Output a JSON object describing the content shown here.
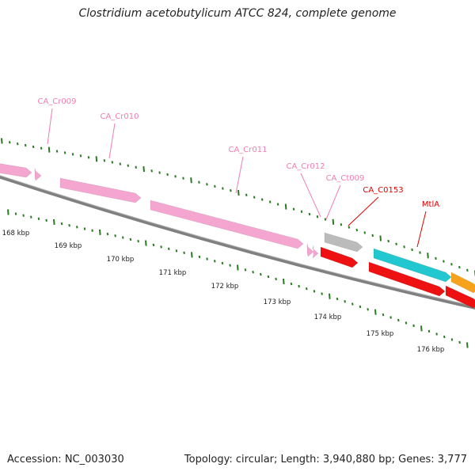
{
  "title": "Clostridium acetobutylicum ATCC 824, complete genome",
  "footer": {
    "accession": "Accession: NC_003030",
    "summary": "Topology: circular; Length: 3,940,880 bp; Genes: 3,777"
  },
  "colors": {
    "pink": "#f4a6d0",
    "red": "#ee1111",
    "gray": "#bbbbbb",
    "cyan": "#22c7cf",
    "orange": "#f7a21e",
    "tick": "#2a7a22",
    "backbone": "#808080",
    "label_pink": "#f07db5",
    "label_red": "#dd0000"
  },
  "scale": {
    "tick_labels": [
      "168 kbp",
      "169 kbp",
      "170 kbp",
      "171 kbp",
      "172 kbp",
      "173 kbp",
      "174 kbp",
      "175 kbp",
      "176 kbp"
    ]
  },
  "features": [
    {
      "name": "",
      "color": "pink",
      "strand": "+"
    },
    {
      "name": "",
      "color": "pink",
      "strand": "+"
    },
    {
      "name": "",
      "color": "pink",
      "strand": "+"
    },
    {
      "name": "",
      "color": "pink",
      "strand": "+"
    },
    {
      "name": "",
      "color": "pink",
      "strand": "+"
    },
    {
      "name": "",
      "color": "pink",
      "strand": "+"
    },
    {
      "name": "",
      "color": "pink",
      "strand": "+"
    },
    {
      "name": "",
      "color": "gray",
      "strand": "+"
    },
    {
      "name": "",
      "color": "red",
      "strand": "+"
    },
    {
      "name": "",
      "color": "cyan",
      "strand": "+"
    },
    {
      "name": "",
      "color": "orange",
      "strand": "+"
    },
    {
      "name": "",
      "color": "red",
      "strand": "-"
    },
    {
      "name": "",
      "color": "red",
      "strand": "-"
    }
  ],
  "gene_labels": [
    {
      "text": "CA_Cr009",
      "color": "label_pink"
    },
    {
      "text": "CA_Cr010",
      "color": "label_pink"
    },
    {
      "text": "CA_Cr011",
      "color": "label_pink"
    },
    {
      "text": "CA_Cr012",
      "color": "label_pink"
    },
    {
      "text": "CA_Ct009",
      "color": "label_pink"
    },
    {
      "text": "CA_C0153",
      "color": "label_red"
    },
    {
      "text": "MtlA",
      "color": "label_red"
    }
  ]
}
